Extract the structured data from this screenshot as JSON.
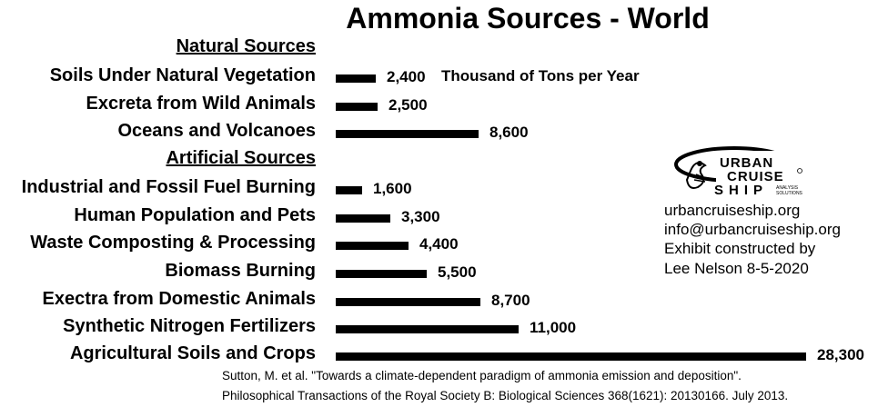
{
  "chart_data": {
    "type": "bar",
    "orientation": "horizontal",
    "title": "Ammonia Sources - World",
    "unit_label": "Thousand of Tons per Year",
    "groups": [
      {
        "heading": "Natural Sources",
        "items": [
          {
            "label": "Soils Under Natural Vegetation",
            "value": 2400,
            "value_label": "2,400"
          },
          {
            "label": "Excreta from Wild Animals",
            "value": 2500,
            "value_label": "2,500"
          },
          {
            "label": "Oceans and Volcanoes",
            "value": 8600,
            "value_label": "8,600"
          }
        ]
      },
      {
        "heading": "Artificial Sources",
        "items": [
          {
            "label": "Industrial and Fossil Fuel Burning",
            "value": 1600,
            "value_label": "1,600"
          },
          {
            "label": "Human Population and Pets",
            "value": 3300,
            "value_label": "3,300"
          },
          {
            "label": "Waste Composting & Processing",
            "value": 4400,
            "value_label": "4,400"
          },
          {
            "label": "Biomass Burning",
            "value": 5500,
            "value_label": "5,500"
          },
          {
            "label": "Exectra from Domestic Animals",
            "value": 8700,
            "value_label": "8,700"
          },
          {
            "label": "Synthetic Nitrogen Fertilizers",
            "value": 11000,
            "value_label": "11,000"
          },
          {
            "label": "Agricultural Soils and Crops",
            "value": 28300,
            "value_label": "28,300"
          }
        ]
      }
    ],
    "xlim": [
      0,
      28300
    ]
  },
  "credits": {
    "logo_text": [
      "URBAN",
      "CRUISE",
      "SHIP"
    ],
    "logo_subtext": [
      "ANALYSIS",
      "SOLUTIONS"
    ],
    "lines": [
      "urbancruiseship.org",
      "info@urbancruiseship.org",
      "Exhibit constructed by",
      "Lee Nelson 8-5-2020"
    ]
  },
  "citation": [
    "Sutton, M. et al. \"Towards a climate-dependent paradigm of ammonia emission and deposition\".",
    "Philosophical Transactions of the Royal Society B: Biological Sciences 368(1621): 20130166. July 2013."
  ],
  "colors": {
    "bar": "#000000",
    "text": "#000000",
    "background": "#ffffff"
  }
}
